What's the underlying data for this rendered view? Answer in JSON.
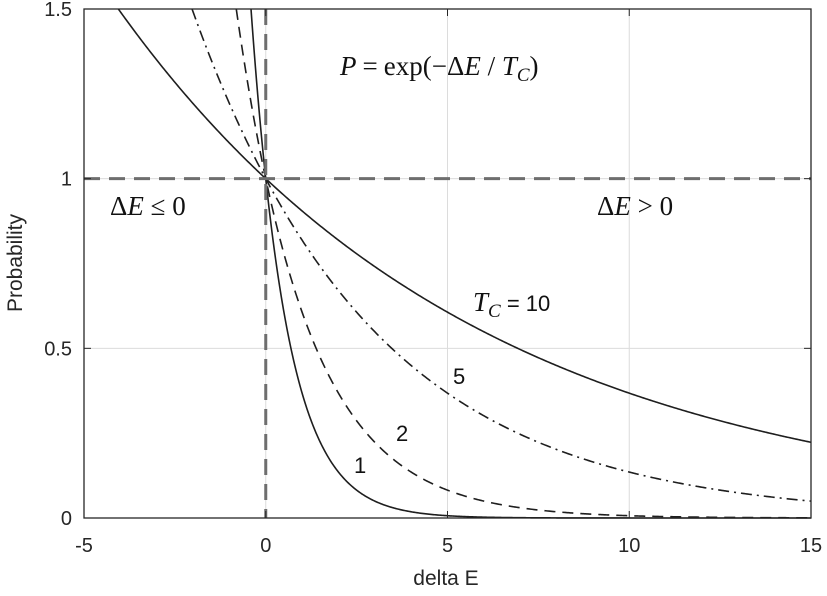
{
  "chart_data": {
    "type": "line",
    "title": "",
    "xlabel": "delta E",
    "ylabel": "Probability",
    "xlim": [
      -5,
      15
    ],
    "ylim": [
      0,
      1.5
    ],
    "x_ticks": [
      -5,
      0,
      5,
      10,
      15
    ],
    "x_tick_labels": [
      "-5",
      "0",
      "5",
      "10",
      "15"
    ],
    "y_ticks": [
      0,
      0.5,
      1,
      1.5
    ],
    "y_tick_labels": [
      "0",
      "0.5",
      "1",
      "1.5"
    ],
    "grid": true,
    "function": "P = exp(-ΔE / Tc)",
    "series": [
      {
        "tc": 1,
        "style": "solid",
        "x": [
          -0.4,
          -0.2,
          0,
          0.5,
          1,
          2,
          3,
          4,
          5,
          7.5,
          10,
          15
        ],
        "y": [
          1.49,
          1.22,
          1.0,
          0.607,
          0.368,
          0.135,
          0.05,
          0.018,
          0.007,
          0.001,
          0.0,
          0.0
        ]
      },
      {
        "tc": 2,
        "style": "dashed",
        "x": [
          -0.8,
          -0.5,
          0,
          1,
          2,
          4,
          6,
          8,
          10,
          15
        ],
        "y": [
          1.49,
          1.28,
          1.0,
          0.607,
          0.368,
          0.135,
          0.05,
          0.018,
          0.007,
          0.001
        ]
      },
      {
        "tc": 5,
        "style": "dash-dot",
        "x": [
          -2,
          -1,
          0,
          2.5,
          5,
          7.5,
          10,
          12.5,
          15
        ],
        "y": [
          1.49,
          1.22,
          1.0,
          0.607,
          0.368,
          0.223,
          0.135,
          0.082,
          0.05
        ]
      },
      {
        "tc": 10,
        "style": "solid",
        "x": [
          -4,
          -2,
          0,
          2.5,
          5,
          7.5,
          10,
          12.5,
          15
        ],
        "y": [
          1.49,
          1.22,
          1.0,
          0.779,
          0.607,
          0.472,
          0.368,
          0.287,
          0.223
        ]
      }
    ],
    "reference_lines": [
      {
        "axis": "y",
        "value": 1,
        "style": "dashed"
      },
      {
        "axis": "x",
        "value": 0,
        "style": "dashed"
      }
    ],
    "annotations": {
      "formula": {
        "lhs": "P",
        "equals": "=",
        "fn": "exp(−",
        "delta": "Δ",
        "var": "E",
        "slash": " / ",
        "temp": "T",
        "sub": "C",
        "close": ")"
      },
      "left_region": {
        "delta": "Δ",
        "var": "E",
        "rel": " ≤ 0"
      },
      "right_region": {
        "delta": "Δ",
        "var": "E",
        "rel": " > 0"
      },
      "tc_label": {
        "var": "T",
        "sub": "C",
        "rest": " =  10"
      },
      "curve_labels": [
        "5",
        "2",
        "1"
      ]
    }
  }
}
